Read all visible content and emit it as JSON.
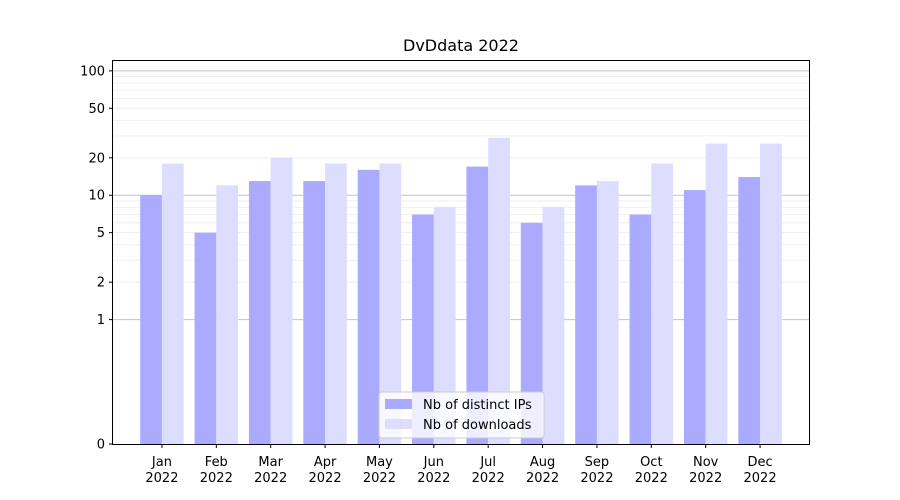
{
  "chart_data": {
    "type": "bar",
    "title": "DvDdata 2022",
    "xlabel": "",
    "ylabel": "",
    "y_scale": "symlog",
    "ylim": [
      0,
      120
    ],
    "y_ticks": [
      0,
      1,
      2,
      5,
      10,
      20,
      50,
      100
    ],
    "y_tick_labels": [
      "0",
      "1",
      "2",
      "5",
      "10",
      "20",
      "50",
      "100"
    ],
    "categories": [
      [
        "Jan",
        "2022"
      ],
      [
        "Feb",
        "2022"
      ],
      [
        "Mar",
        "2022"
      ],
      [
        "Apr",
        "2022"
      ],
      [
        "May",
        "2022"
      ],
      [
        "Jun",
        "2022"
      ],
      [
        "Jul",
        "2022"
      ],
      [
        "Aug",
        "2022"
      ],
      [
        "Sep",
        "2022"
      ],
      [
        "Oct",
        "2022"
      ],
      [
        "Nov",
        "2022"
      ],
      [
        "Dec",
        "2022"
      ]
    ],
    "series": [
      {
        "name": "Nb of distinct IPs",
        "color": "#aaaaff",
        "values": [
          10,
          5,
          13,
          13,
          16,
          7,
          17,
          6,
          12,
          7,
          11,
          14
        ]
      },
      {
        "name": "Nb of downloads",
        "color": "#ddddff",
        "values": [
          18,
          12,
          20,
          18,
          18,
          8,
          29,
          8,
          13,
          18,
          26,
          26
        ]
      }
    ],
    "grid": true,
    "legend_position": "bottom-center"
  }
}
